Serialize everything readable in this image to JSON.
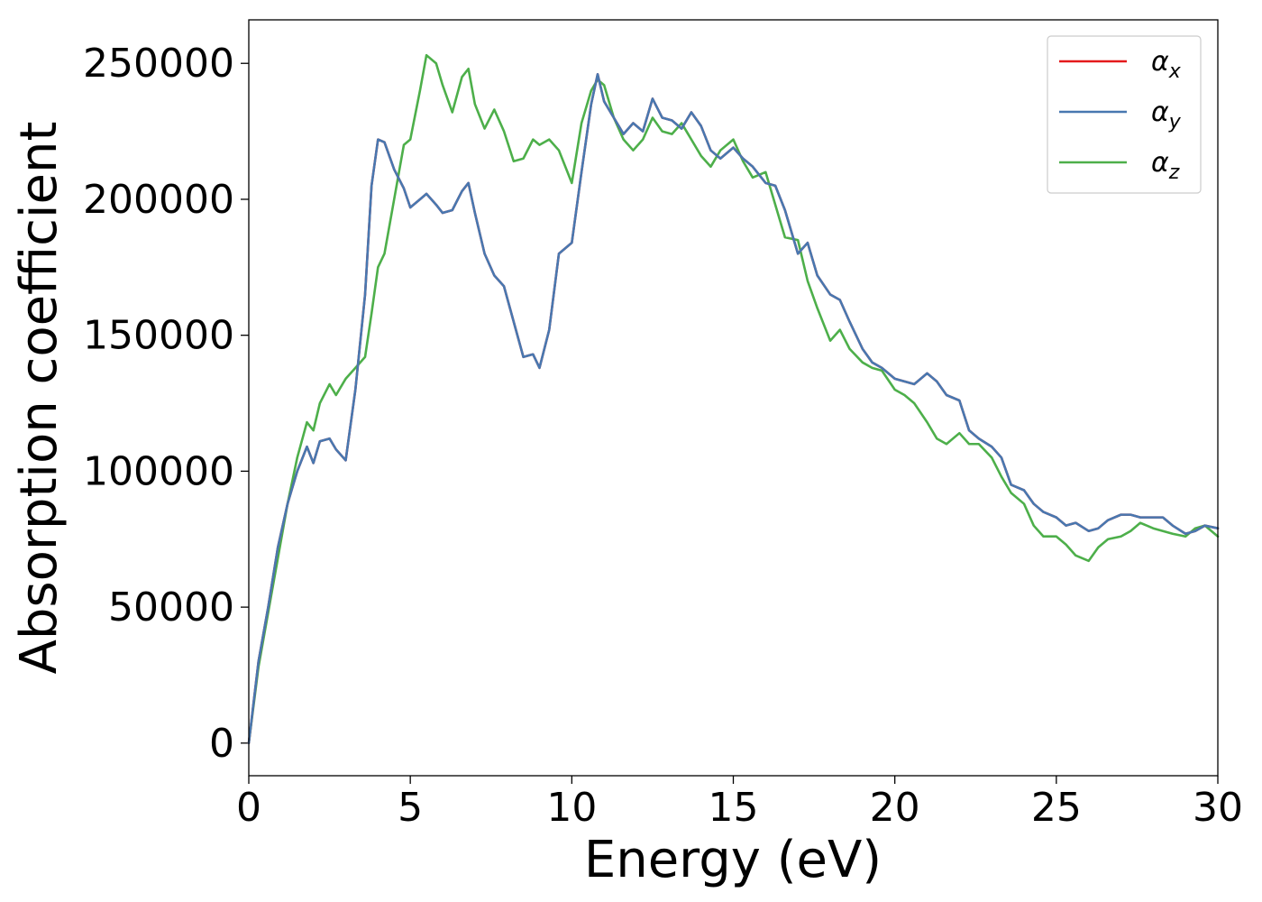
{
  "chart_data": {
    "type": "line",
    "title": "",
    "xlabel": "Energy (eV)",
    "ylabel": "Absorption coefficient",
    "xlim": [
      0,
      30
    ],
    "ylim": [
      -12000,
      266000
    ],
    "xticks": [
      0,
      5,
      10,
      15,
      20,
      25,
      30
    ],
    "yticks": [
      0,
      50000,
      100000,
      150000,
      200000,
      250000
    ],
    "grid": false,
    "legend_position": "top-right",
    "series": [
      {
        "name": "α",
        "subscript": "x",
        "color": "#e41a1c",
        "x": [
          0,
          0.3,
          0.6,
          0.9,
          1.2,
          1.5,
          1.8,
          2.0,
          2.2,
          2.5,
          2.7,
          3.0,
          3.3,
          3.6,
          3.8,
          4.0,
          4.2,
          4.5,
          4.8,
          5.0,
          5.3,
          5.5,
          5.8,
          6.0,
          6.3,
          6.6,
          6.8,
          7.0,
          7.3,
          7.6,
          7.9,
          8.2,
          8.5,
          8.8,
          9.0,
          9.3,
          9.6,
          10.0,
          10.3,
          10.6,
          10.8,
          11.0,
          11.3,
          11.6,
          11.9,
          12.2,
          12.5,
          12.8,
          13.1,
          13.4,
          13.7,
          14.0,
          14.3,
          14.6,
          15.0,
          15.3,
          15.6,
          16.0,
          16.3,
          16.6,
          17.0,
          17.3,
          17.6,
          18.0,
          18.3,
          18.6,
          19.0,
          19.3,
          19.6,
          20.0,
          20.3,
          20.6,
          21.0,
          21.3,
          21.6,
          22.0,
          22.3,
          22.6,
          23.0,
          23.3,
          23.6,
          24.0,
          24.3,
          24.6,
          25.0,
          25.3,
          25.6,
          26.0,
          26.3,
          26.6,
          27.0,
          27.3,
          27.6,
          28.0,
          28.3,
          28.6,
          29.0,
          29.3,
          29.6,
          30.0
        ],
        "y": [
          0,
          30000,
          50000,
          72000,
          88000,
          100000,
          109000,
          103000,
          111000,
          112000,
          108000,
          104000,
          130000,
          165000,
          205000,
          222000,
          221000,
          211000,
          204000,
          197000,
          200000,
          202000,
          198000,
          195000,
          196000,
          203000,
          206000,
          195000,
          180000,
          172000,
          168000,
          155000,
          142000,
          143000,
          138000,
          152000,
          180000,
          184000,
          210000,
          235000,
          246000,
          236000,
          230000,
          224000,
          228000,
          225000,
          237000,
          230000,
          229000,
          226000,
          232000,
          227000,
          218000,
          215000,
          219000,
          215000,
          212000,
          206000,
          205000,
          196000,
          180000,
          184000,
          172000,
          165000,
          163000,
          155000,
          145000,
          140000,
          138000,
          134000,
          133000,
          132000,
          136000,
          133000,
          128000,
          126000,
          115000,
          112000,
          109000,
          105000,
          95000,
          93000,
          88000,
          85000,
          83000,
          80000,
          81000,
          78000,
          79000,
          82000,
          84000,
          84000,
          83000,
          83000,
          83000,
          80000,
          77000,
          78000,
          80000,
          79000
        ]
      },
      {
        "name": "α",
        "subscript": "y",
        "color": "#4878b0",
        "x": [
          0,
          0.3,
          0.6,
          0.9,
          1.2,
          1.5,
          1.8,
          2.0,
          2.2,
          2.5,
          2.7,
          3.0,
          3.3,
          3.6,
          3.8,
          4.0,
          4.2,
          4.5,
          4.8,
          5.0,
          5.3,
          5.5,
          5.8,
          6.0,
          6.3,
          6.6,
          6.8,
          7.0,
          7.3,
          7.6,
          7.9,
          8.2,
          8.5,
          8.8,
          9.0,
          9.3,
          9.6,
          10.0,
          10.3,
          10.6,
          10.8,
          11.0,
          11.3,
          11.6,
          11.9,
          12.2,
          12.5,
          12.8,
          13.1,
          13.4,
          13.7,
          14.0,
          14.3,
          14.6,
          15.0,
          15.3,
          15.6,
          16.0,
          16.3,
          16.6,
          17.0,
          17.3,
          17.6,
          18.0,
          18.3,
          18.6,
          19.0,
          19.3,
          19.6,
          20.0,
          20.3,
          20.6,
          21.0,
          21.3,
          21.6,
          22.0,
          22.3,
          22.6,
          23.0,
          23.3,
          23.6,
          24.0,
          24.3,
          24.6,
          25.0,
          25.3,
          25.6,
          26.0,
          26.3,
          26.6,
          27.0,
          27.3,
          27.6,
          28.0,
          28.3,
          28.6,
          29.0,
          29.3,
          29.6,
          30.0
        ],
        "y": [
          0,
          30000,
          50000,
          72000,
          88000,
          100000,
          109000,
          103000,
          111000,
          112000,
          108000,
          104000,
          130000,
          165000,
          205000,
          222000,
          221000,
          211000,
          204000,
          197000,
          200000,
          202000,
          198000,
          195000,
          196000,
          203000,
          206000,
          195000,
          180000,
          172000,
          168000,
          155000,
          142000,
          143000,
          138000,
          152000,
          180000,
          184000,
          210000,
          235000,
          246000,
          236000,
          230000,
          224000,
          228000,
          225000,
          237000,
          230000,
          229000,
          226000,
          232000,
          227000,
          218000,
          215000,
          219000,
          215000,
          212000,
          206000,
          205000,
          196000,
          180000,
          184000,
          172000,
          165000,
          163000,
          155000,
          145000,
          140000,
          138000,
          134000,
          133000,
          132000,
          136000,
          133000,
          128000,
          126000,
          115000,
          112000,
          109000,
          105000,
          95000,
          93000,
          88000,
          85000,
          83000,
          80000,
          81000,
          78000,
          79000,
          82000,
          84000,
          84000,
          83000,
          83000,
          83000,
          80000,
          77000,
          78000,
          80000,
          79000
        ]
      },
      {
        "name": "α",
        "subscript": "z",
        "color": "#4daf4a",
        "x": [
          0,
          0.3,
          0.6,
          0.9,
          1.2,
          1.5,
          1.8,
          2.0,
          2.2,
          2.5,
          2.7,
          3.0,
          3.3,
          3.6,
          3.8,
          4.0,
          4.2,
          4.5,
          4.8,
          5.0,
          5.3,
          5.5,
          5.8,
          6.0,
          6.3,
          6.6,
          6.8,
          7.0,
          7.3,
          7.6,
          7.9,
          8.2,
          8.5,
          8.8,
          9.0,
          9.3,
          9.6,
          10.0,
          10.3,
          10.6,
          10.8,
          11.0,
          11.3,
          11.6,
          11.9,
          12.2,
          12.5,
          12.8,
          13.1,
          13.4,
          13.7,
          14.0,
          14.3,
          14.6,
          15.0,
          15.3,
          15.6,
          16.0,
          16.3,
          16.6,
          17.0,
          17.3,
          17.6,
          18.0,
          18.3,
          18.6,
          19.0,
          19.3,
          19.6,
          20.0,
          20.3,
          20.6,
          21.0,
          21.3,
          21.6,
          22.0,
          22.3,
          22.6,
          23.0,
          23.3,
          23.6,
          24.0,
          24.3,
          24.6,
          25.0,
          25.3,
          25.6,
          26.0,
          26.3,
          26.6,
          27.0,
          27.3,
          27.6,
          28.0,
          28.3,
          28.6,
          29.0,
          29.3,
          29.6,
          30.0
        ],
        "y": [
          0,
          28000,
          48000,
          68000,
          88000,
          105000,
          118000,
          115000,
          125000,
          132000,
          128000,
          134000,
          138000,
          142000,
          158000,
          175000,
          180000,
          200000,
          220000,
          222000,
          240000,
          253000,
          250000,
          242000,
          232000,
          245000,
          248000,
          235000,
          226000,
          233000,
          225000,
          214000,
          215000,
          222000,
          220000,
          222000,
          218000,
          206000,
          228000,
          240000,
          244000,
          242000,
          230000,
          222000,
          218000,
          222000,
          230000,
          225000,
          224000,
          228000,
          222000,
          216000,
          212000,
          218000,
          222000,
          214000,
          208000,
          210000,
          198000,
          186000,
          185000,
          170000,
          160000,
          148000,
          152000,
          145000,
          140000,
          138000,
          137000,
          130000,
          128000,
          125000,
          118000,
          112000,
          110000,
          114000,
          110000,
          110000,
          105000,
          98000,
          92000,
          88000,
          80000,
          76000,
          76000,
          73000,
          69000,
          67000,
          72000,
          75000,
          76000,
          78000,
          81000,
          79000,
          78000,
          77000,
          76000,
          79000,
          80000,
          76000
        ]
      }
    ]
  }
}
